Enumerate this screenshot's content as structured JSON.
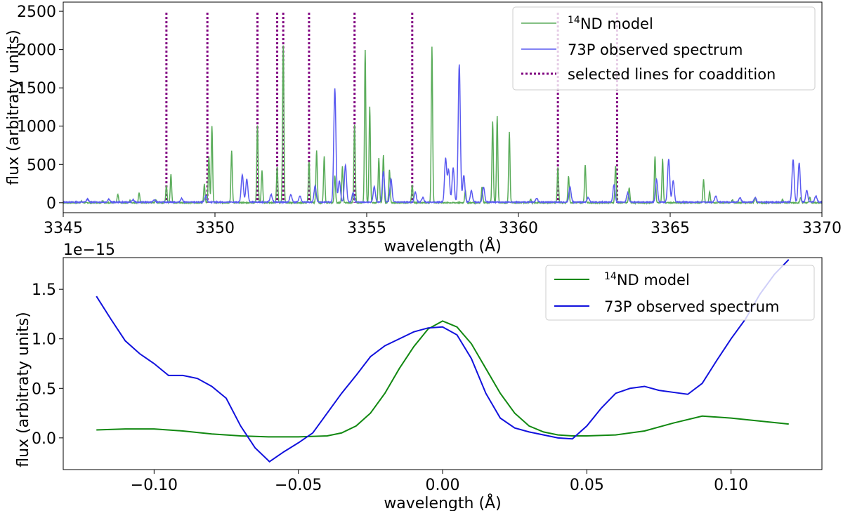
{
  "chart_data": [
    {
      "type": "line",
      "xlabel": "wavelength (Å)",
      "ylabel": "flux (arbitraty units)",
      "xlim": [
        3345,
        3370
      ],
      "ylim": [
        -130,
        2620
      ],
      "xticks": [
        3345,
        3350,
        3355,
        3360,
        3365,
        3370
      ],
      "yticks": [
        0,
        500,
        1000,
        1500,
        2000,
        2500
      ],
      "legend_position": "top-right",
      "legend": [
        {
          "sup": "14",
          "text": "ND model",
          "color": "#5aac5a",
          "style": "solid"
        },
        {
          "sup": "",
          "text": "73P observed spectrum",
          "color": "#5a5af0",
          "style": "solid"
        },
        {
          "sup": "",
          "text": "selected lines for coaddition",
          "color": "#800080",
          "style": "dotted"
        }
      ],
      "selected_lines": [
        3348.4,
        3349.75,
        3351.4,
        3352.05,
        3352.25,
        3353.1,
        3354.6,
        3356.5,
        3361.3,
        3363.25
      ],
      "series": [
        {
          "name": "14ND model",
          "color": "#5aac5a",
          "peaks": [
            [
              3345.6,
              20
            ],
            [
              3346.3,
              30
            ],
            [
              3346.8,
              110
            ],
            [
              3347.2,
              30
            ],
            [
              3347.5,
              130
            ],
            [
              3348.05,
              40
            ],
            [
              3348.4,
              220
            ],
            [
              3348.55,
              370
            ],
            [
              3349.65,
              240
            ],
            [
              3349.8,
              600
            ],
            [
              3349.9,
              1000
            ],
            [
              3350.55,
              680
            ],
            [
              3351.4,
              1010
            ],
            [
              3351.55,
              420
            ],
            [
              3352.05,
              460
            ],
            [
              3352.25,
              2060
            ],
            [
              3353.1,
              540
            ],
            [
              3353.35,
              680
            ],
            [
              3353.6,
              600
            ],
            [
              3353.95,
              360
            ],
            [
              3354.2,
              470
            ],
            [
              3354.6,
              1020
            ],
            [
              3354.95,
              2000
            ],
            [
              3355.1,
              1260
            ],
            [
              3355.4,
              580
            ],
            [
              3355.55,
              620
            ],
            [
              3355.75,
              430
            ],
            [
              3356.5,
              230
            ],
            [
              3357.15,
              2040
            ],
            [
              3358.25,
              160
            ],
            [
              3358.8,
              210
            ],
            [
              3359.15,
              1060
            ],
            [
              3359.3,
              1130
            ],
            [
              3359.7,
              920
            ],
            [
              3360.4,
              50
            ],
            [
              3361.3,
              460
            ],
            [
              3361.65,
              350
            ],
            [
              3362.2,
              500
            ],
            [
              3363.2,
              480
            ],
            [
              3363.65,
              200
            ],
            [
              3364.5,
              610
            ],
            [
              3364.75,
              570
            ],
            [
              3366.1,
              300
            ],
            [
              3366.3,
              140
            ],
            [
              3367.05,
              40
            ],
            [
              3367.8,
              70
            ],
            [
              3368.7,
              40
            ],
            [
              3369.3,
              70
            ],
            [
              3369.6,
              70
            ]
          ]
        },
        {
          "name": "73P observed spectrum",
          "color": "#5a5af0",
          "peaks": [
            [
              3345.8,
              40
            ],
            [
              3346.5,
              40
            ],
            [
              3347.3,
              30
            ],
            [
              3348.0,
              30
            ],
            [
              3348.9,
              50
            ],
            [
              3349.7,
              80
            ],
            [
              3350.9,
              360
            ],
            [
              3351.05,
              300
            ],
            [
              3351.85,
              100
            ],
            [
              3352.5,
              100
            ],
            [
              3352.8,
              80
            ],
            [
              3353.3,
              210
            ],
            [
              3353.95,
              1480
            ],
            [
              3354.1,
              280
            ],
            [
              3354.3,
              480
            ],
            [
              3354.55,
              120
            ],
            [
              3355.25,
              200
            ],
            [
              3355.55,
              400
            ],
            [
              3355.8,
              300
            ],
            [
              3356.6,
              130
            ],
            [
              3356.85,
              60
            ],
            [
              3357.85,
              450
            ],
            [
              3358.05,
              1800
            ],
            [
              3358.2,
              350
            ],
            [
              3358.45,
              150
            ],
            [
              3358.85,
              200
            ],
            [
              3357.6,
              570
            ],
            [
              3357.7,
              420
            ],
            [
              3360.6,
              50
            ],
            [
              3361.7,
              200
            ],
            [
              3362.3,
              60
            ],
            [
              3363.15,
              230
            ],
            [
              3363.6,
              120
            ],
            [
              3364.55,
              300
            ],
            [
              3364.95,
              560
            ],
            [
              3365.1,
              280
            ],
            [
              3366.5,
              80
            ],
            [
              3367.3,
              60
            ],
            [
              3367.8,
              60
            ],
            [
              3369.05,
              560
            ],
            [
              3369.25,
              510
            ],
            [
              3369.5,
              150
            ],
            [
              3369.8,
              80
            ]
          ]
        }
      ]
    },
    {
      "type": "line",
      "xlabel": "wavelength (Å)",
      "ylabel": "flux (arbitraty units)",
      "offset_text": "1e−15",
      "xlim": [
        -0.1315,
        0.1315
      ],
      "ylim": [
        -0.32,
        1.82
      ],
      "xticks": [
        -0.1,
        -0.05,
        0.0,
        0.05,
        0.1
      ],
      "xtick_labels": [
        "−0.10",
        "−0.05",
        "0.00",
        "0.05",
        "0.10"
      ],
      "yticks": [
        0.0,
        0.5,
        1.0,
        1.5
      ],
      "ytick_labels": [
        "0.0",
        "0.5",
        "1.0",
        "1.5"
      ],
      "legend_position": "top-right",
      "legend": [
        {
          "sup": "14",
          "text": "ND model",
          "color": "#118811",
          "style": "solid"
        },
        {
          "sup": "",
          "text": "73P observed spectrum",
          "color": "#1111dd",
          "style": "solid"
        }
      ],
      "series": [
        {
          "name": "14ND model",
          "color": "#118811",
          "x": [
            -0.12,
            -0.11,
            -0.1,
            -0.09,
            -0.08,
            -0.07,
            -0.06,
            -0.05,
            -0.04,
            -0.035,
            -0.03,
            -0.025,
            -0.02,
            -0.015,
            -0.01,
            -0.005,
            0.0,
            0.005,
            0.01,
            0.015,
            0.02,
            0.025,
            0.03,
            0.035,
            0.04,
            0.045,
            0.05,
            0.06,
            0.07,
            0.08,
            0.09,
            0.1,
            0.11,
            0.12
          ],
          "y": [
            0.08,
            0.09,
            0.09,
            0.07,
            0.04,
            0.02,
            0.01,
            0.01,
            0.02,
            0.05,
            0.12,
            0.25,
            0.45,
            0.7,
            0.92,
            1.1,
            1.18,
            1.12,
            0.95,
            0.7,
            0.45,
            0.25,
            0.12,
            0.06,
            0.03,
            0.02,
            0.02,
            0.03,
            0.07,
            0.15,
            0.22,
            0.2,
            0.17,
            0.14
          ]
        },
        {
          "name": "73P observed spectrum",
          "color": "#1111dd",
          "x": [
            -0.12,
            -0.115,
            -0.11,
            -0.105,
            -0.1,
            -0.095,
            -0.09,
            -0.085,
            -0.08,
            -0.075,
            -0.07,
            -0.065,
            -0.06,
            -0.055,
            -0.05,
            -0.045,
            -0.04,
            -0.035,
            -0.03,
            -0.025,
            -0.02,
            -0.015,
            -0.01,
            -0.005,
            0.0,
            0.005,
            0.01,
            0.015,
            0.02,
            0.025,
            0.03,
            0.035,
            0.04,
            0.045,
            0.05,
            0.055,
            0.06,
            0.065,
            0.07,
            0.075,
            0.08,
            0.085,
            0.09,
            0.095,
            0.1,
            0.105,
            0.11,
            0.115,
            0.12
          ],
          "y": [
            1.43,
            1.2,
            0.98,
            0.85,
            0.75,
            0.63,
            0.63,
            0.6,
            0.52,
            0.4,
            0.12,
            -0.1,
            -0.24,
            -0.14,
            -0.05,
            0.05,
            0.25,
            0.45,
            0.63,
            0.82,
            0.93,
            1.0,
            1.07,
            1.11,
            1.12,
            1.04,
            0.8,
            0.45,
            0.2,
            0.1,
            0.06,
            0.03,
            0.0,
            -0.01,
            0.12,
            0.3,
            0.45,
            0.5,
            0.52,
            0.48,
            0.46,
            0.44,
            0.55,
            0.78,
            1.0,
            1.2,
            1.45,
            1.65,
            1.8
          ]
        }
      ]
    }
  ]
}
